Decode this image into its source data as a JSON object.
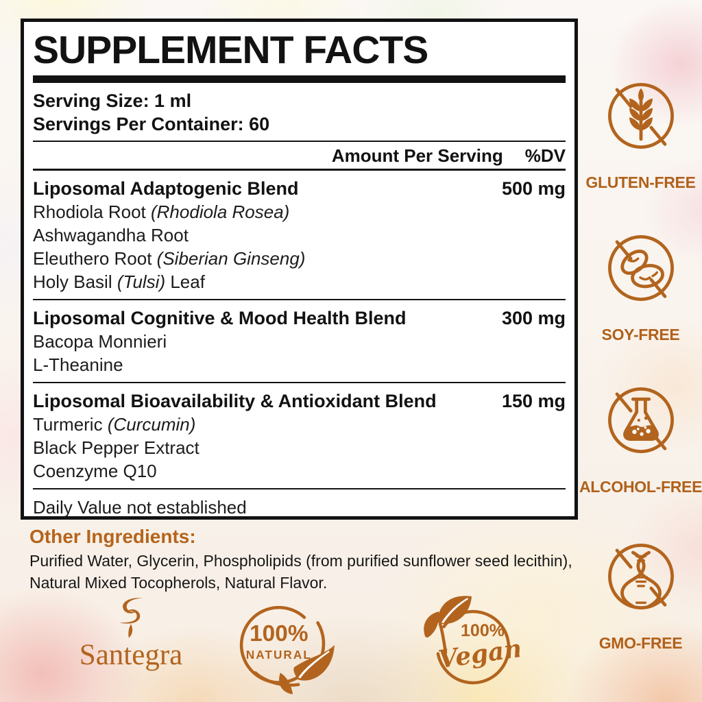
{
  "accent_color": "#b2641e",
  "panel": {
    "title": "SUPPLEMENT FACTS",
    "serving_size": "Serving Size: 1 ml",
    "servings_per_container": "Servings Per Container: 60",
    "amount_per_serving_label": "Amount Per Serving",
    "dv_label": "%DV",
    "blends": [
      {
        "name": "Liposomal Adaptogenic Blend",
        "amount": "500 mg",
        "ingredients": [
          [
            {
              "t": "Rhodiola Root "
            },
            {
              "t": "(Rhodiola Rosea)",
              "i": true
            }
          ],
          [
            {
              "t": "Ashwagandha Root"
            }
          ],
          [
            {
              "t": "Eleuthero Root "
            },
            {
              "t": "(Siberian Ginseng)",
              "i": true
            }
          ],
          [
            {
              "t": "Holy Basil "
            },
            {
              "t": "(Tulsi)",
              "i": true
            },
            {
              "t": " Leaf"
            }
          ]
        ]
      },
      {
        "name": "Liposomal Cognitive & Mood Health Blend",
        "amount": "300 mg",
        "ingredients": [
          [
            {
              "t": "Bacopa Monnieri"
            }
          ],
          [
            {
              "t": "L-Theanine"
            }
          ]
        ]
      },
      {
        "name": "Liposomal Bioavailability & Antioxidant Blend",
        "amount": "150 mg",
        "ingredients": [
          [
            {
              "t": "Turmeric "
            },
            {
              "t": "(Curcumin)",
              "i": true
            }
          ],
          [
            {
              "t": "Black Pepper Extract"
            }
          ],
          [
            {
              "t": "Coenzyme Q10"
            }
          ]
        ]
      }
    ],
    "footnote": "Daily Value not established"
  },
  "other_ingredients": {
    "label": "Other Ingredients:",
    "text": "Purified Water, Glycerin, Phospholipids (from purified sunflower seed lecithin),\nNatural Mixed Tocopherols, Natural Flavor."
  },
  "badges": [
    {
      "label": "GLUTEN-FREE",
      "icon": "wheat-crossed-icon"
    },
    {
      "label": "SOY-FREE",
      "icon": "soybean-crossed-icon"
    },
    {
      "label": "ALCOHOL-FREE",
      "icon": "flask-crossed-icon"
    },
    {
      "label": "GMO-FREE",
      "icon": "dna-crossed-icon"
    }
  ],
  "footer": {
    "brand": "Santegra",
    "natural_badge": {
      "percent": "100%",
      "label": "NATURAL"
    },
    "vegan_badge": {
      "percent": "100%",
      "label": "Vegan"
    }
  }
}
